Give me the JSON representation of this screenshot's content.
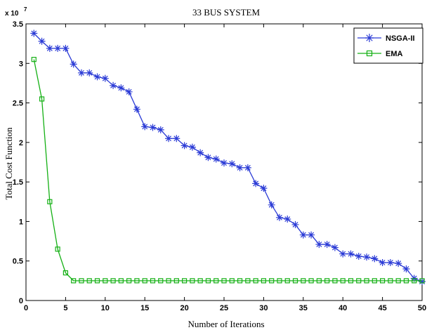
{
  "chart_data": {
    "type": "line",
    "title": "33 BUS SYSTEM",
    "xlabel": "Number of Iterations",
    "ylabel": "Total Cost Function",
    "y_multiplier_label": "x 10",
    "y_multiplier_exponent": "7",
    "xlim": [
      0,
      50
    ],
    "ylim": [
      0,
      3.5
    ],
    "xticks": [
      0,
      5,
      10,
      15,
      20,
      25,
      30,
      35,
      40,
      45,
      50
    ],
    "yticks": [
      0,
      0.5,
      1,
      1.5,
      2,
      2.5,
      3,
      3.5
    ],
    "ytick_labels": [
      "0",
      "0.5",
      "1",
      "1.5",
      "2",
      "2.5",
      "3",
      "3.5"
    ],
    "grid": false,
    "legend_position": "top-right",
    "x": [
      1,
      2,
      3,
      4,
      5,
      6,
      7,
      8,
      9,
      10,
      11,
      12,
      13,
      14,
      15,
      16,
      17,
      18,
      19,
      20,
      21,
      22,
      23,
      24,
      25,
      26,
      27,
      28,
      29,
      30,
      31,
      32,
      33,
      34,
      35,
      36,
      37,
      38,
      39,
      40,
      41,
      42,
      43,
      44,
      45,
      46,
      47,
      48,
      49,
      50
    ],
    "series": [
      {
        "name": "NSGA-II",
        "color": "#2b3bd6",
        "marker": "star",
        "values": [
          3.38,
          3.28,
          3.19,
          3.19,
          3.19,
          2.99,
          2.88,
          2.88,
          2.83,
          2.81,
          2.72,
          2.69,
          2.64,
          2.42,
          2.2,
          2.19,
          2.16,
          2.05,
          2.05,
          1.96,
          1.94,
          1.87,
          1.81,
          1.79,
          1.74,
          1.73,
          1.68,
          1.68,
          1.48,
          1.42,
          1.21,
          1.05,
          1.03,
          0.96,
          0.83,
          0.83,
          0.71,
          0.71,
          0.67,
          0.59,
          0.59,
          0.56,
          0.55,
          0.53,
          0.48,
          0.48,
          0.47,
          0.4,
          0.28,
          0.24
        ]
      },
      {
        "name": "EMA",
        "color": "#14b014",
        "marker": "square",
        "values": [
          3.05,
          2.55,
          1.25,
          0.65,
          0.35,
          0.25,
          0.25,
          0.25,
          0.25,
          0.25,
          0.25,
          0.25,
          0.25,
          0.25,
          0.25,
          0.25,
          0.25,
          0.25,
          0.25,
          0.25,
          0.25,
          0.25,
          0.25,
          0.25,
          0.25,
          0.25,
          0.25,
          0.25,
          0.25,
          0.25,
          0.25,
          0.25,
          0.25,
          0.25,
          0.25,
          0.25,
          0.25,
          0.25,
          0.25,
          0.25,
          0.25,
          0.25,
          0.25,
          0.25,
          0.25,
          0.25,
          0.25,
          0.25,
          0.25,
          0.25
        ]
      }
    ]
  }
}
